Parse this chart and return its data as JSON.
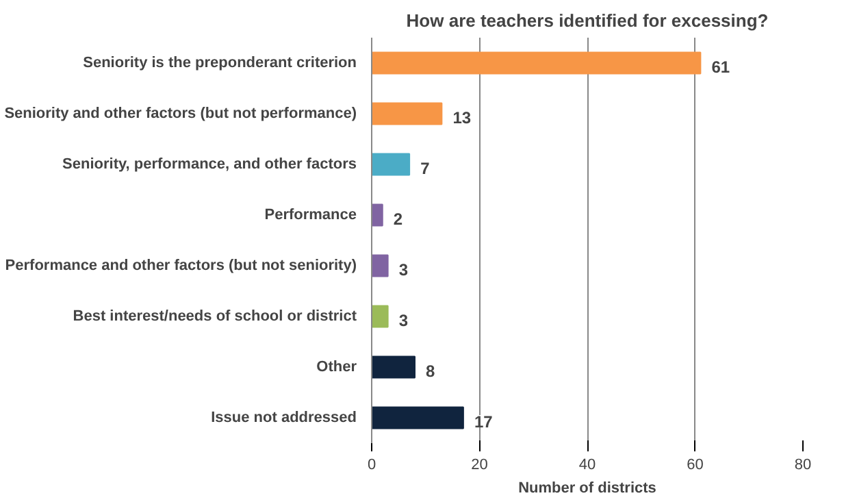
{
  "chart_data": {
    "type": "bar",
    "orientation": "horizontal",
    "title": "How are teachers identified for excessing?",
    "xlabel": "Number of districts",
    "categories": [
      "Seniority is the preponderant criterion",
      "Seniority and other factors (but not performance)",
      "Seniority, performance, and other factors",
      "Performance",
      "Performance and other factors (but not seniority)",
      "Best interest/needs of school or district",
      "Other",
      "Issue not addressed"
    ],
    "values": [
      61,
      13,
      7,
      2,
      3,
      3,
      8,
      17
    ],
    "colors": [
      "#f79646",
      "#f79646",
      "#4bacc6",
      "#8064a2",
      "#8064a2",
      "#9bbb59",
      "#10243e",
      "#10243e"
    ],
    "xlim": [
      0,
      80
    ],
    "xticks": [
      0,
      20,
      40,
      60,
      80
    ],
    "grid": "x",
    "data_labels": true
  }
}
